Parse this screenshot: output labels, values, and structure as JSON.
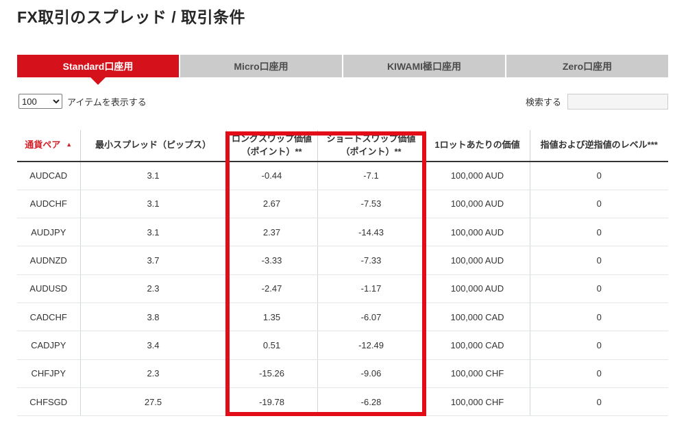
{
  "page": {
    "title": "FX取引のスプレッド / 取引条件"
  },
  "tabs": [
    {
      "label": "Standard口座用",
      "active": true
    },
    {
      "label": "Micro口座用",
      "active": false
    },
    {
      "label": "KIWAMI極口座用",
      "active": false
    },
    {
      "label": "Zero口座用",
      "active": false
    }
  ],
  "controls": {
    "page_length_value": "100",
    "page_length_label": "アイテムを表示する",
    "search_label": "検索する",
    "search_value": ""
  },
  "table": {
    "columns": [
      {
        "label": "通貨ペア",
        "sublabel": "",
        "sort_icon": "▲"
      },
      {
        "label": "最小スプレッド（ピップス）",
        "sublabel": ""
      },
      {
        "label": "ロングスワップ価値",
        "sublabel": "（ポイント）**"
      },
      {
        "label": "ショートスワップ価値",
        "sublabel": "（ポイント）**"
      },
      {
        "label": "1ロットあたりの価値",
        "sublabel": ""
      },
      {
        "label": "指値および逆指値のレベル***",
        "sublabel": ""
      }
    ],
    "column_keys": [
      "pair",
      "min-spread",
      "long-swap",
      "short-swap",
      "lot-value",
      "stop-limit-level"
    ],
    "rows": [
      [
        "AUDCAD",
        "3.1",
        "-0.44",
        "-7.1",
        "100,000 AUD",
        "0"
      ],
      [
        "AUDCHF",
        "3.1",
        "2.67",
        "-7.53",
        "100,000 AUD",
        "0"
      ],
      [
        "AUDJPY",
        "3.1",
        "2.37",
        "-14.43",
        "100,000 AUD",
        "0"
      ],
      [
        "AUDNZD",
        "3.7",
        "-3.33",
        "-7.33",
        "100,000 AUD",
        "0"
      ],
      [
        "AUDUSD",
        "2.3",
        "-2.47",
        "-1.17",
        "100,000 AUD",
        "0"
      ],
      [
        "CADCHF",
        "3.8",
        "1.35",
        "-6.07",
        "100,000 CAD",
        "0"
      ],
      [
        "CADJPY",
        "3.4",
        "0.51",
        "-12.49",
        "100,000 CAD",
        "0"
      ],
      [
        "CHFJPY",
        "2.3",
        "-15.26",
        "-9.06",
        "100,000 CHF",
        "0"
      ],
      [
        "CHFSGD",
        "27.5",
        "-19.78",
        "-6.28",
        "100,000 CHF",
        "0"
      ]
    ]
  },
  "colors": {
    "brand_red": "#d5121b",
    "highlight_red": "#e20d17",
    "sorted_header_red": "#d2232a",
    "tab_inactive_bg": "#cbcbcb",
    "tab_inactive_text": "#4c4c4c",
    "header_border_dark": "#333333",
    "row_border_light": "#e2e6e8",
    "column_divider": "#cdd6da"
  }
}
